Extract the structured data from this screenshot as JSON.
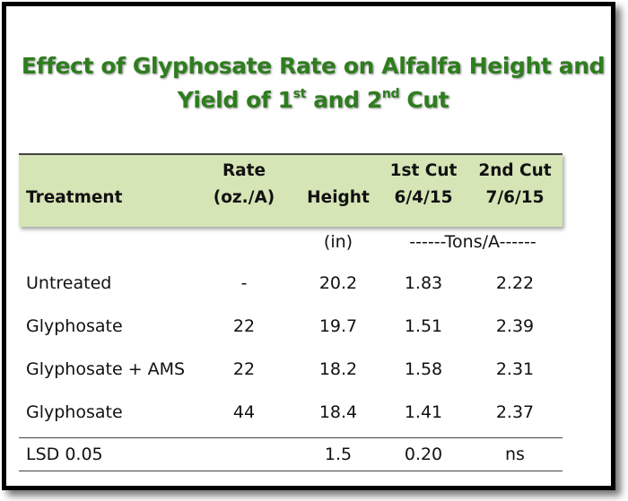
{
  "title": {
    "line1": "Effect of Glyphosate Rate on Alfalfa Height and",
    "line2_pre": "Yield of 1",
    "line2_sup1": "st",
    "line2_mid": " and 2",
    "line2_sup2": "nd",
    "line2_post": " Cut"
  },
  "header": {
    "treatment": "Treatment",
    "rate_line1": "Rate",
    "rate_line2": "(oz./A)",
    "height": "Height",
    "cut1_line1": "1st Cut",
    "cut1_line2": "6/4/15",
    "cut2_line1": "2nd Cut",
    "cut2_line2": "7/6/15"
  },
  "units": {
    "height": "(in)",
    "yield": "------Tons/A------"
  },
  "rows": [
    {
      "treatment": "Untreated",
      "rate": "-",
      "height": "20.2",
      "cut1": "1.83",
      "cut2": "2.22"
    },
    {
      "treatment": "Glyphosate",
      "rate": "22",
      "height": "19.7",
      "cut1": "1.51",
      "cut2": "2.39"
    },
    {
      "treatment": "Glyphosate + AMS",
      "rate": "22",
      "height": "18.2",
      "cut1": "1.58",
      "cut2": "2.31"
    },
    {
      "treatment": "Glyphosate",
      "rate": "44",
      "height": "18.4",
      "cut1": "1.41",
      "cut2": "2.37"
    }
  ],
  "lsd": {
    "treatment": "LSD 0.05",
    "rate": "",
    "height": "1.5",
    "cut1": "0.20",
    "cut2": "ns"
  },
  "colors": {
    "title": "#2e7d1e",
    "header_band": "#d5e5b6"
  }
}
